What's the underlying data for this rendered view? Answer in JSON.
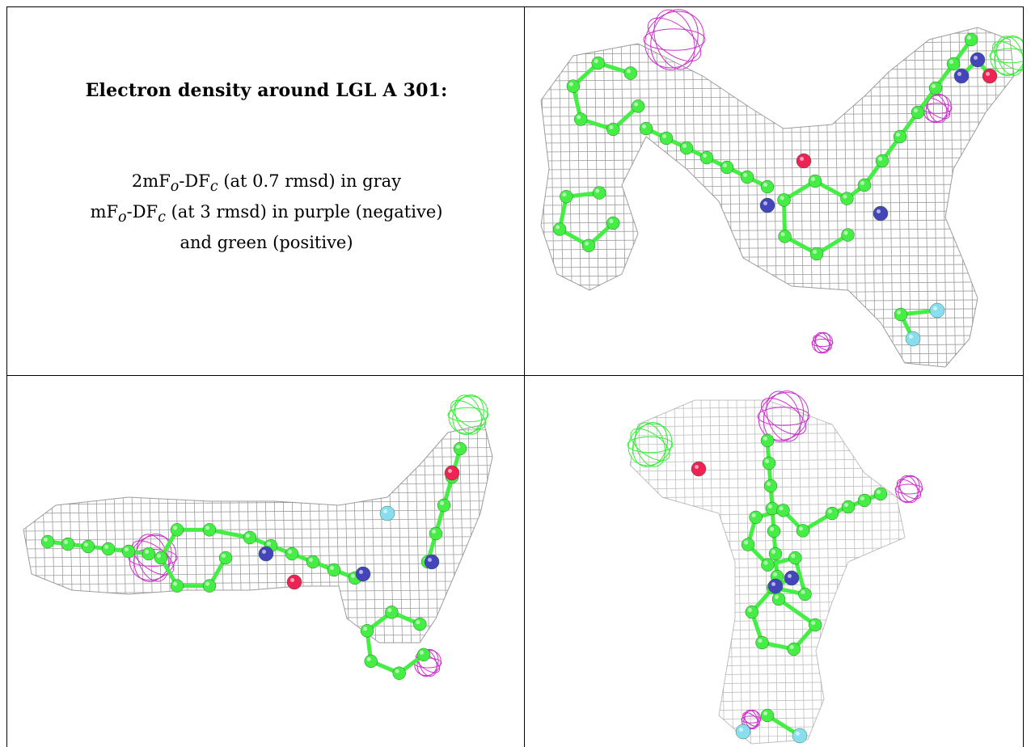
{
  "caption": {
    "title": "Electron density around LGL A 301:",
    "line1": {
      "prefix": "2mF",
      "sub1": "o",
      "mid": "-DF",
      "sub2": "c",
      "suffix": " (at 0.7 rmsd) in gray"
    },
    "line2": {
      "prefix": "mF",
      "sub1": "o",
      "mid": "-DF",
      "sub2": "c",
      "suffix": " (at 3 rmsd) in purple (negative)"
    },
    "line3": "and green (positive)"
  },
  "colors": {
    "mesh_2fofc": "#8c8c8c",
    "mesh_negative": "#cc33cc",
    "mesh_positive": "#33ee33",
    "carbon": "#44ee44",
    "nitrogen": "#4444bb",
    "oxygen": "#ee2255",
    "fluorine": "#88ddee"
  },
  "panels": [
    {
      "name": "view-1",
      "view": "top"
    },
    {
      "name": "view-2",
      "view": "side"
    },
    {
      "name": "view-3",
      "view": "end-on"
    }
  ]
}
